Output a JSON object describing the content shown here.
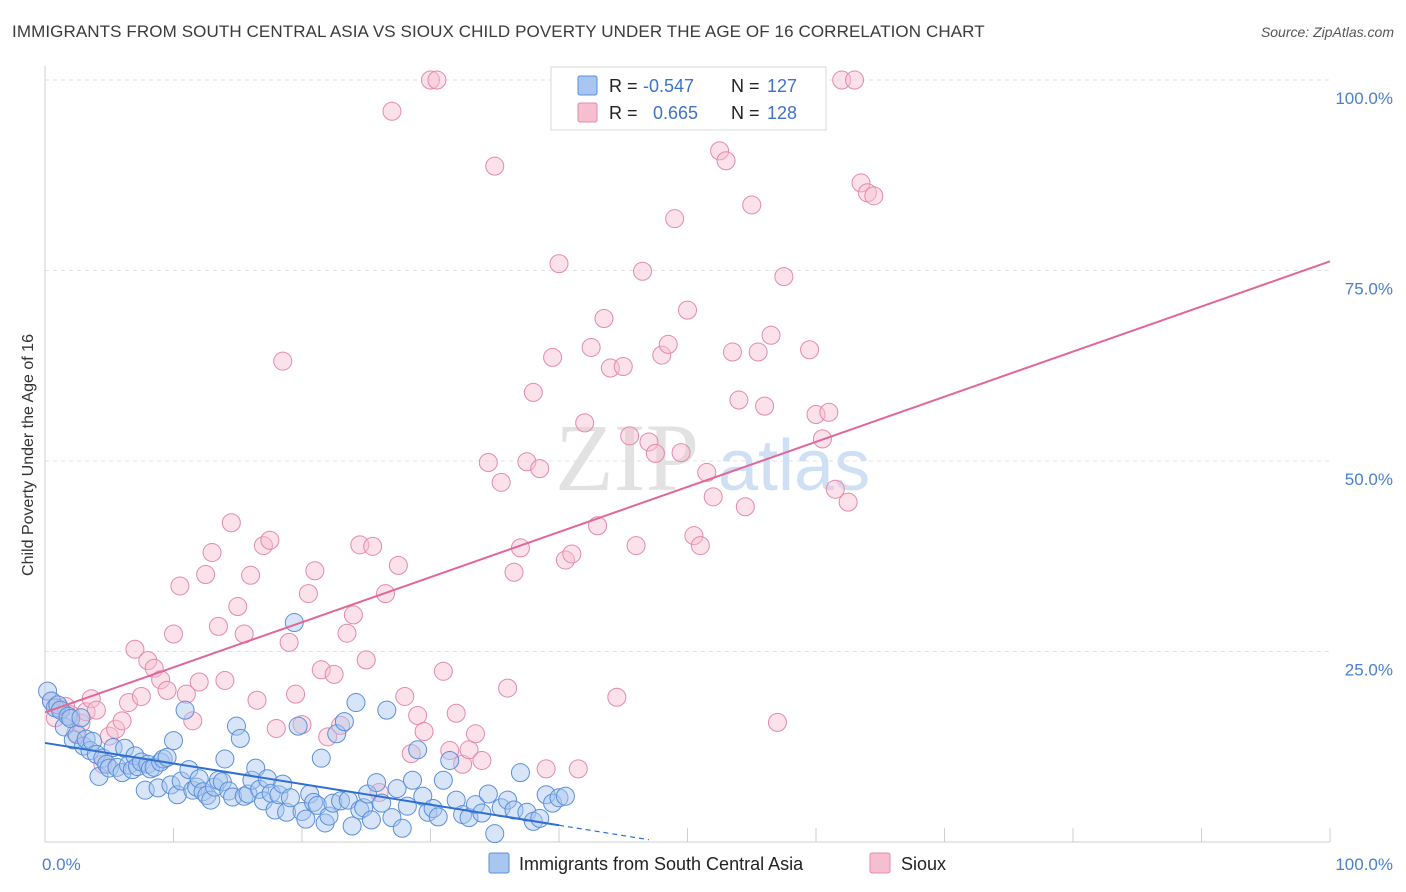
{
  "title": "IMMIGRANTS FROM SOUTH CENTRAL ASIA VS SIOUX CHILD POVERTY UNDER THE AGE OF 16 CORRELATION CHART",
  "source": "Source: ZipAtlas.com",
  "watermark": {
    "zip": "ZIP",
    "atlas": "atlas"
  },
  "legend": {
    "r_label": "R =",
    "n_label": "N =",
    "series1": {
      "r": "-0.547",
      "n": "127"
    },
    "series2": {
      "r": "0.665",
      "n": "128"
    }
  },
  "colors": {
    "blue_fill": "#a9c6f0",
    "blue_stroke": "#5b8fd9",
    "blue_line": "#2f6fd0",
    "pink_fill": "#f6bfd0",
    "pink_stroke": "#e48aa9",
    "pink_line": "#e0679a",
    "tick_text": "#4a7fd0"
  },
  "chart_data": {
    "type": "scatter",
    "xlabel": "",
    "ylabel": "Child Poverty Under the Age of 16",
    "xlim": [
      0,
      100
    ],
    "ylim": [
      0,
      100
    ],
    "x_tick_labels": [
      "0.0%",
      "100.0%"
    ],
    "y_ticks": [
      25,
      50,
      75,
      100
    ],
    "y_tick_labels": [
      "25.0%",
      "50.0%",
      "75.0%",
      "100.0%"
    ],
    "grid": true,
    "legend_position": "top-center",
    "series": [
      {
        "name": "Immigrants from South Central Asia",
        "color": "#a9c6f0",
        "trend": {
          "x": [
            0,
            40
          ],
          "y": [
            13,
            2.2
          ],
          "dashed_to": [
            47,
            0.3
          ]
        },
        "points": [
          [
            0.2,
            19.8
          ],
          [
            0.5,
            18.5
          ],
          [
            0.8,
            17.6
          ],
          [
            1,
            18
          ],
          [
            1.2,
            17.3
          ],
          [
            1.5,
            15.1
          ],
          [
            1.8,
            16.5
          ],
          [
            2,
            16.2
          ],
          [
            2.2,
            13.4
          ],
          [
            2.5,
            14.1
          ],
          [
            2.8,
            16.3
          ],
          [
            3,
            12.6
          ],
          [
            3.2,
            13.5
          ],
          [
            3.5,
            12
          ],
          [
            3.7,
            13.2
          ],
          [
            4,
            11.5
          ],
          [
            4.2,
            8.6
          ],
          [
            4.5,
            11
          ],
          [
            4.8,
            10.2
          ],
          [
            5,
            9.7
          ],
          [
            5.3,
            12.4
          ],
          [
            5.6,
            9.8
          ],
          [
            6,
            9.1
          ],
          [
            6.2,
            12.3
          ],
          [
            6.5,
            10.1
          ],
          [
            6.8,
            9.5
          ],
          [
            7,
            11.3
          ],
          [
            7.2,
            9.9
          ],
          [
            7.5,
            10.5
          ],
          [
            7.8,
            6.8
          ],
          [
            8,
            10.2
          ],
          [
            8.2,
            9.6
          ],
          [
            8.5,
            9.8
          ],
          [
            8.8,
            7.1
          ],
          [
            9,
            10.5
          ],
          [
            9.2,
            10.9
          ],
          [
            9.5,
            11.1
          ],
          [
            9.8,
            7.5
          ],
          [
            10,
            13.3
          ],
          [
            10.3,
            6.2
          ],
          [
            10.6,
            8
          ],
          [
            10.9,
            17.3
          ],
          [
            11.2,
            9.5
          ],
          [
            11.5,
            6.8
          ],
          [
            11.8,
            7.2
          ],
          [
            12,
            8.3
          ],
          [
            12.3,
            6.6
          ],
          [
            12.6,
            6.1
          ],
          [
            12.9,
            5.5
          ],
          [
            13.2,
            7.2
          ],
          [
            13.5,
            8.1
          ],
          [
            13.8,
            7.9
          ],
          [
            14,
            10.9
          ],
          [
            14.3,
            6.7
          ],
          [
            14.6,
            5.9
          ],
          [
            14.9,
            15.2
          ],
          [
            15.2,
            13.6
          ],
          [
            15.5,
            6
          ],
          [
            15.8,
            6.3
          ],
          [
            16.1,
            8.1
          ],
          [
            16.4,
            9.7
          ],
          [
            16.7,
            6.9
          ],
          [
            17,
            5.4
          ],
          [
            17.3,
            8.3
          ],
          [
            17.6,
            6.4
          ],
          [
            17.9,
            4.2
          ],
          [
            18.2,
            6.2
          ],
          [
            18.5,
            7.6
          ],
          [
            18.8,
            3.9
          ],
          [
            19.1,
            5.8
          ],
          [
            19.4,
            28.8
          ],
          [
            19.7,
            15.2
          ],
          [
            20,
            4
          ],
          [
            20.3,
            3
          ],
          [
            20.6,
            6.3
          ],
          [
            20.9,
            5.2
          ],
          [
            21.2,
            4.8
          ],
          [
            21.5,
            11
          ],
          [
            21.8,
            2.5
          ],
          [
            22.1,
            3.4
          ],
          [
            22.4,
            5.1
          ],
          [
            22.7,
            14.2
          ],
          [
            23,
            5.4
          ],
          [
            23.3,
            15.8
          ],
          [
            23.6,
            5.5
          ],
          [
            23.9,
            2.1
          ],
          [
            24.2,
            18.3
          ],
          [
            24.5,
            4.2
          ],
          [
            24.8,
            4.5
          ],
          [
            25.1,
            6.3
          ],
          [
            25.4,
            2.9
          ],
          [
            25.8,
            7.8
          ],
          [
            26.2,
            5.1
          ],
          [
            26.6,
            17.3
          ],
          [
            27,
            3.2
          ],
          [
            27.4,
            7
          ],
          [
            27.8,
            1.8
          ],
          [
            28.2,
            4.7
          ],
          [
            28.6,
            8.1
          ],
          [
            29,
            12.1
          ],
          [
            29.4,
            6
          ],
          [
            29.8,
            3.9
          ],
          [
            30.2,
            4.4
          ],
          [
            30.6,
            3.3
          ],
          [
            31,
            8.1
          ],
          [
            31.5,
            10.7
          ],
          [
            32,
            5.5
          ],
          [
            32.5,
            3.6
          ],
          [
            33,
            3.2
          ],
          [
            33.5,
            4.9
          ],
          [
            34,
            3.8
          ],
          [
            34.5,
            6.3
          ],
          [
            35,
            1.1
          ],
          [
            35.5,
            4.5
          ],
          [
            36,
            5.5
          ],
          [
            36.5,
            4.2
          ],
          [
            37,
            9.1
          ],
          [
            37.5,
            3.9
          ],
          [
            38,
            2.7
          ],
          [
            38.5,
            3.1
          ],
          [
            39,
            6.2
          ],
          [
            39.5,
            5.1
          ],
          [
            40,
            5.8
          ],
          [
            40.5,
            6
          ]
        ]
      },
      {
        "name": "Sioux",
        "color": "#f6bfd0",
        "trend": {
          "x": [
            0,
            100
          ],
          "y": [
            17,
            76.2
          ]
        },
        "points": [
          [
            0.5,
            18.5
          ],
          [
            0.8,
            16.3
          ],
          [
            1.2,
            17.5
          ],
          [
            1.6,
            17.8
          ],
          [
            2,
            16.7
          ],
          [
            2.4,
            14.3
          ],
          [
            2.8,
            15.6
          ],
          [
            3.2,
            17.1
          ],
          [
            3.6,
            18.8
          ],
          [
            4,
            17.3
          ],
          [
            4.5,
            10.2
          ],
          [
            5,
            13.9
          ],
          [
            5.5,
            14.8
          ],
          [
            6,
            15.9
          ],
          [
            6.5,
            18.3
          ],
          [
            7,
            25.3
          ],
          [
            7.5,
            19.1
          ],
          [
            8,
            23.8
          ],
          [
            8.5,
            22.8
          ],
          [
            9,
            21.3
          ],
          [
            9.5,
            19.9
          ],
          [
            10,
            27.3
          ],
          [
            10.5,
            33.6
          ],
          [
            11,
            19.4
          ],
          [
            11.5,
            15.9
          ],
          [
            12,
            21
          ],
          [
            12.5,
            35.1
          ],
          [
            13,
            38
          ],
          [
            13.5,
            28.3
          ],
          [
            14,
            21.2
          ],
          [
            14.5,
            41.9
          ],
          [
            15,
            30.9
          ],
          [
            15.5,
            27.3
          ],
          [
            16,
            35
          ],
          [
            16.5,
            18.6
          ],
          [
            17,
            38.9
          ],
          [
            17.5,
            39.6
          ],
          [
            18,
            14.9
          ],
          [
            18.5,
            63.1
          ],
          [
            19,
            26.2
          ],
          [
            19.5,
            19.4
          ],
          [
            20,
            15.4
          ],
          [
            20.5,
            32.6
          ],
          [
            21,
            35.6
          ],
          [
            21.5,
            22.6
          ],
          [
            22,
            13.8
          ],
          [
            22.5,
            22
          ],
          [
            23,
            15.3
          ],
          [
            23.5,
            27.4
          ],
          [
            24,
            29.8
          ],
          [
            24.5,
            39
          ],
          [
            25,
            23.9
          ],
          [
            25.5,
            38.8
          ],
          [
            26,
            6.5
          ],
          [
            26.5,
            32.6
          ],
          [
            27,
            95.9
          ],
          [
            27.5,
            36.3
          ],
          [
            28,
            19.1
          ],
          [
            28.5,
            11.6
          ],
          [
            29,
            16.6
          ],
          [
            29.5,
            14.5
          ],
          [
            30,
            100
          ],
          [
            30.5,
            100
          ],
          [
            31,
            22.4
          ],
          [
            31.5,
            12
          ],
          [
            32,
            16.9
          ],
          [
            32.5,
            10.2
          ],
          [
            33,
            12.1
          ],
          [
            33.5,
            14.2
          ],
          [
            34,
            10.7
          ],
          [
            34.5,
            49.8
          ],
          [
            35,
            88.7
          ],
          [
            35.5,
            47.2
          ],
          [
            36,
            20.2
          ],
          [
            36.5,
            35.4
          ],
          [
            37,
            38.6
          ],
          [
            37.5,
            49.9
          ],
          [
            38,
            59
          ],
          [
            38.5,
            49
          ],
          [
            39,
            9.6
          ],
          [
            39.5,
            63.6
          ],
          [
            40,
            75.9
          ],
          [
            40.5,
            37
          ],
          [
            41,
            37.8
          ],
          [
            41.5,
            9.6
          ],
          [
            42,
            55
          ],
          [
            42.5,
            64.9
          ],
          [
            43,
            41.5
          ],
          [
            43.5,
            68.7
          ],
          [
            44,
            62.2
          ],
          [
            44.5,
            19
          ],
          [
            45,
            62.4
          ],
          [
            45.5,
            53.3
          ],
          [
            46,
            38.9
          ],
          [
            46.5,
            74.9
          ],
          [
            47,
            52.5
          ],
          [
            47.5,
            51
          ],
          [
            48,
            63.9
          ],
          [
            48.5,
            65.3
          ],
          [
            49,
            81.8
          ],
          [
            49.5,
            51.1
          ],
          [
            50,
            69.8
          ],
          [
            50.5,
            40.2
          ],
          [
            51,
            38.9
          ],
          [
            51.5,
            48.5
          ],
          [
            52,
            45.3
          ],
          [
            52.5,
            90.7
          ],
          [
            53,
            89.4
          ],
          [
            53.5,
            64.3
          ],
          [
            54,
            58
          ],
          [
            54.5,
            44
          ],
          [
            55,
            83.6
          ],
          [
            55.5,
            64.3
          ],
          [
            56,
            57.2
          ],
          [
            56.5,
            66.5
          ],
          [
            57,
            15.7
          ],
          [
            57.5,
            74.2
          ],
          [
            58,
            100
          ],
          [
            58.5,
            96.9
          ],
          [
            59,
            97
          ],
          [
            59.5,
            64.6
          ],
          [
            60,
            56.1
          ],
          [
            60.5,
            52.9
          ],
          [
            61,
            56.4
          ],
          [
            61.5,
            46.3
          ],
          [
            62,
            100
          ],
          [
            62.5,
            44.6
          ],
          [
            63,
            100
          ],
          [
            63.5,
            86.5
          ],
          [
            64,
            85.2
          ],
          [
            64.5,
            84.8
          ]
        ]
      }
    ]
  },
  "bottom_legend": [
    "Immigrants from South Central Asia",
    "Sioux"
  ]
}
